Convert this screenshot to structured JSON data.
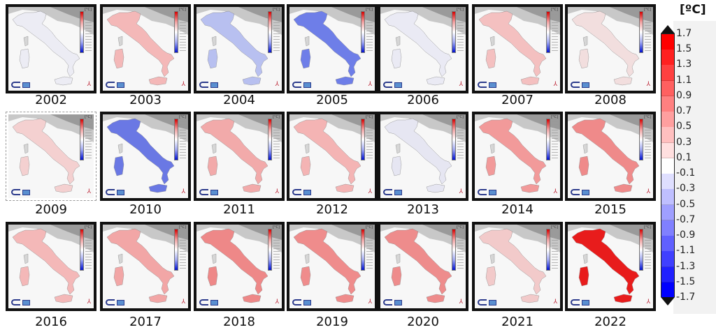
{
  "figure": {
    "panels": [
      {
        "year": "2002",
        "fill": "#ececf4",
        "frame": "framed"
      },
      {
        "year": "2003",
        "fill": "#f4b8b8",
        "frame": "framed"
      },
      {
        "year": "2004",
        "fill": "#b8c0f0",
        "frame": "framed"
      },
      {
        "year": "2005",
        "fill": "#6e7ee8",
        "frame": "framed"
      },
      {
        "year": "2006",
        "fill": "#eaeaf4",
        "frame": "framed"
      },
      {
        "year": "2007",
        "fill": "#f4c0c0",
        "frame": "framed"
      },
      {
        "year": "2008",
        "fill": "#f2dede",
        "frame": "framed"
      },
      {
        "year": "2009",
        "fill": "#f4d0d0",
        "frame": "plain"
      },
      {
        "year": "2010",
        "fill": "#6a78e4",
        "frame": "framed"
      },
      {
        "year": "2011",
        "fill": "#f2aaaa",
        "frame": "framed"
      },
      {
        "year": "2012",
        "fill": "#f4b4b4",
        "frame": "framed"
      },
      {
        "year": "2013",
        "fill": "#e6e6f2",
        "frame": "framed"
      },
      {
        "year": "2014",
        "fill": "#f29a9a",
        "frame": "framed"
      },
      {
        "year": "2015",
        "fill": "#ef8a8a",
        "frame": "framed"
      },
      {
        "year": "2016",
        "fill": "#f4b8b8",
        "frame": "framed"
      },
      {
        "year": "2017",
        "fill": "#f2a6a6",
        "frame": "framed"
      },
      {
        "year": "2018",
        "fill": "#ee8888",
        "frame": "framed"
      },
      {
        "year": "2019",
        "fill": "#ef8c8c",
        "frame": "framed"
      },
      {
        "year": "2020",
        "fill": "#ee8c8c",
        "frame": "framed"
      },
      {
        "year": "2021",
        "fill": "#f2caca",
        "frame": "framed"
      },
      {
        "year": "2022",
        "fill": "#e81c1c",
        "frame": "framed"
      }
    ],
    "panel_unit_label": "[°C]",
    "north_glyph": "⅄"
  },
  "legend": {
    "unit": "[ºC]",
    "ticks": [
      "1.7",
      "1.5",
      "1.3",
      "1.1",
      "0.9",
      "0.7",
      "0.5",
      "0.3",
      "0.1",
      "-0.1",
      "-0.3",
      "-0.5",
      "-0.7",
      "-0.9",
      "-1.1",
      "-1.3",
      "-1.5",
      "-1.7"
    ],
    "colors": {
      "max": "#ff0000",
      "zero": "#ffffff",
      "min": "#0000ff"
    }
  }
}
